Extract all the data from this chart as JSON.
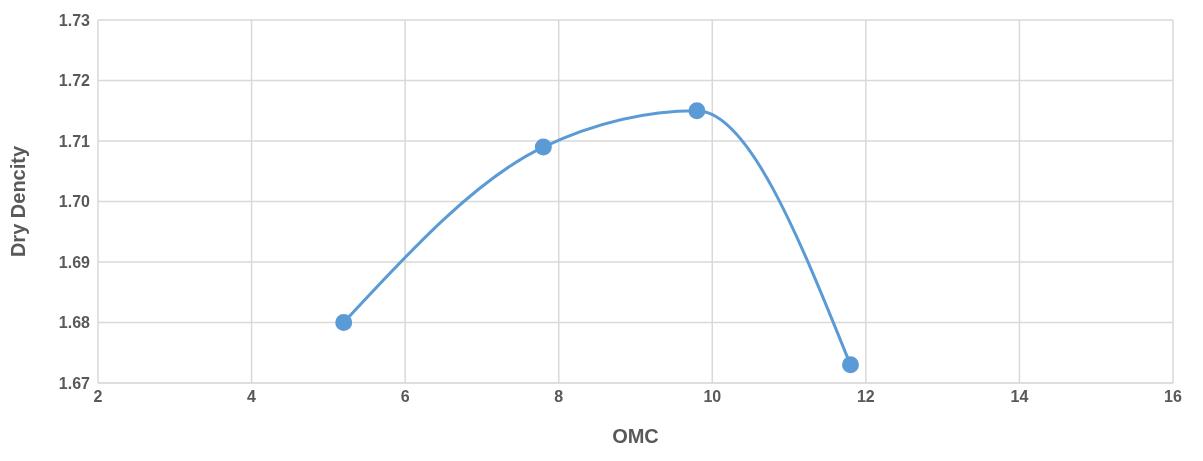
{
  "chart_data": {
    "type": "line",
    "xlabel": "OMC",
    "ylabel": "Dry Dencity",
    "x": [
      5.2,
      7.8,
      9.8,
      11.8
    ],
    "series": [
      {
        "color": "#5b9bd5",
        "values": [
          1.68,
          1.709,
          1.715,
          1.673
        ]
      }
    ],
    "xlim": [
      2,
      16
    ],
    "xticks": [
      2,
      4,
      6,
      8,
      10,
      12,
      14,
      16
    ],
    "ylim": [
      1.67,
      1.73
    ],
    "yticks": [
      {
        "value": 1.67,
        "label": "1.67"
      },
      {
        "value": 1.68,
        "label": "1.68"
      },
      {
        "value": 1.69,
        "label": "1.69"
      },
      {
        "value": 1.7,
        "label": "1.70"
      },
      {
        "value": 1.71,
        "label": "1.71"
      },
      {
        "value": 1.72,
        "label": "1.72"
      },
      {
        "value": 1.73,
        "label": "1.73"
      }
    ],
    "grid": true,
    "marker": "circle",
    "line_style": "solid"
  }
}
